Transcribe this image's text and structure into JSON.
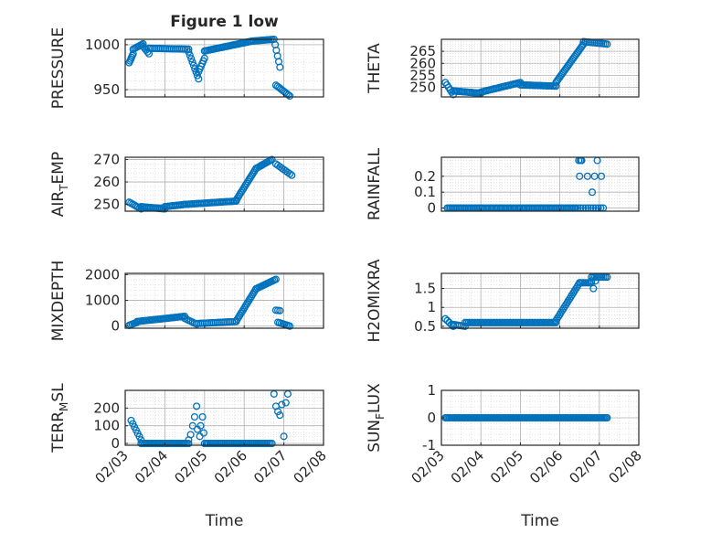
{
  "figure": {
    "title": "Figure 1 low"
  },
  "colors": {
    "marker": "#0072BD",
    "axis": "#262626",
    "grid": "#b0b0b0",
    "background": "#ffffff"
  },
  "time_ticks": [
    "02/03",
    "02/04",
    "02/05",
    "02/06",
    "02/07",
    "02/08"
  ],
  "chart_data": [
    {
      "type": "scatter",
      "id": "pressure",
      "title": "Figure 1 low",
      "ylabel_html": [
        "PRESSURE"
      ],
      "xlabel": "",
      "x_range": [
        3,
        8
      ],
      "ylim": [
        942,
        1006
      ],
      "yticks": [
        950,
        1000
      ],
      "ytick_labels": [
        "950",
        "1000"
      ],
      "segments": [
        {
          "x0": 3.1,
          "x1": 3.2,
          "y0": 980,
          "y1": 990,
          "n": 6
        },
        {
          "x0": 3.2,
          "x1": 3.45,
          "y0": 995,
          "y1": 1001,
          "n": 8
        },
        {
          "x0": 3.45,
          "x1": 3.6,
          "y0": 998,
          "y1": 990,
          "n": 5
        },
        {
          "x0": 3.6,
          "x1": 4.6,
          "y0": 996,
          "y1": 995,
          "n": 22
        },
        {
          "x0": 4.6,
          "x1": 4.85,
          "y0": 992,
          "y1": 962,
          "n": 9
        },
        {
          "x0": 4.85,
          "x1": 5.0,
          "y0": 970,
          "y1": 985,
          "n": 6
        },
        {
          "x0": 5.0,
          "x1": 6.2,
          "y0": 993,
          "y1": 1004,
          "n": 35
        },
        {
          "x0": 6.2,
          "x1": 6.75,
          "y0": 1004,
          "y1": 1006,
          "n": 14
        },
        {
          "x0": 6.78,
          "x1": 6.9,
          "y0": 1000,
          "y1": 975,
          "n": 5
        },
        {
          "x0": 6.8,
          "x1": 7.15,
          "y0": 955,
          "y1": 943,
          "n": 10
        }
      ]
    },
    {
      "type": "scatter",
      "id": "theta",
      "ylabel_html": [
        "THETA"
      ],
      "xlabel": "",
      "x_range": [
        3,
        8
      ],
      "ylim": [
        246,
        270
      ],
      "yticks": [
        250,
        255,
        260,
        265
      ],
      "ytick_labels": [
        "250",
        "255",
        "260",
        "265"
      ],
      "segments": [
        {
          "x0": 3.1,
          "x1": 3.3,
          "y0": 252,
          "y1": 247,
          "n": 6
        },
        {
          "x0": 3.3,
          "x1": 4.0,
          "y0": 248.5,
          "y1": 247.5,
          "n": 20
        },
        {
          "x0": 4.0,
          "x1": 5.0,
          "y0": 248,
          "y1": 252,
          "n": 28
        },
        {
          "x0": 5.0,
          "x1": 5.9,
          "y0": 251,
          "y1": 250.5,
          "n": 22
        },
        {
          "x0": 5.9,
          "x1": 6.6,
          "y0": 252,
          "y1": 268,
          "n": 26
        },
        {
          "x0": 6.6,
          "x1": 7.2,
          "y0": 269,
          "y1": 268,
          "n": 14
        }
      ]
    },
    {
      "type": "scatter",
      "id": "air_temp",
      "ylabel_html": [
        "AIR",
        "T",
        "EMP"
      ],
      "xlabel": "",
      "x_range": [
        3,
        8
      ],
      "ylim": [
        247,
        271
      ],
      "yticks": [
        250,
        260,
        270
      ],
      "ytick_labels": [
        "250",
        "260",
        "270"
      ],
      "segments": [
        {
          "x0": 3.1,
          "x1": 3.4,
          "y0": 251,
          "y1": 248,
          "n": 8
        },
        {
          "x0": 3.4,
          "x1": 4.0,
          "y0": 249,
          "y1": 248,
          "n": 16
        },
        {
          "x0": 4.0,
          "x1": 4.5,
          "y0": 249,
          "y1": 250,
          "n": 14
        },
        {
          "x0": 4.5,
          "x1": 5.8,
          "y0": 250,
          "y1": 251.5,
          "n": 34
        },
        {
          "x0": 5.8,
          "x1": 6.3,
          "y0": 252,
          "y1": 266,
          "n": 18
        },
        {
          "x0": 6.3,
          "x1": 6.7,
          "y0": 266,
          "y1": 270,
          "n": 12
        },
        {
          "x0": 6.8,
          "x1": 7.2,
          "y0": 268,
          "y1": 263,
          "n": 9
        }
      ]
    },
    {
      "type": "scatter",
      "id": "rainfall",
      "ylabel_html": [
        "RAINFALL"
      ],
      "xlabel": "",
      "x_range": [
        3,
        8
      ],
      "ylim": [
        -0.02,
        0.32
      ],
      "yticks": [
        0,
        0.1,
        0.2
      ],
      "ytick_labels": [
        "0",
        "0.1",
        "0.2"
      ],
      "segments": [
        {
          "x0": 3.15,
          "x1": 6.4,
          "y0": 0,
          "y1": 0,
          "n": 85
        },
        {
          "x0": 6.4,
          "x1": 7.1,
          "y0": 0,
          "y1": 0,
          "n": 12
        }
      ],
      "points": [
        [
          6.48,
          0.3
        ],
        [
          6.52,
          0.3
        ],
        [
          6.55,
          0.3
        ],
        [
          6.5,
          0.2
        ],
        [
          6.55,
          0.3
        ],
        [
          6.7,
          0.2
        ],
        [
          6.82,
          0.1
        ],
        [
          6.88,
          0.2
        ],
        [
          6.95,
          0.3
        ],
        [
          7.05,
          0.2
        ]
      ]
    },
    {
      "type": "scatter",
      "id": "mixdepth",
      "ylabel_html": [
        "MIXDEPTH"
      ],
      "xlabel": "",
      "x_range": [
        3,
        8
      ],
      "ylim": [
        -80,
        2050
      ],
      "yticks": [
        0,
        1000,
        2000
      ],
      "ytick_labels": [
        "0",
        "1000",
        "2000"
      ],
      "segments": [
        {
          "x0": 3.1,
          "x1": 3.3,
          "y0": 30,
          "y1": 150,
          "n": 6
        },
        {
          "x0": 3.3,
          "x1": 4.5,
          "y0": 180,
          "y1": 380,
          "n": 30
        },
        {
          "x0": 4.5,
          "x1": 4.8,
          "y0": 300,
          "y1": 80,
          "n": 7
        },
        {
          "x0": 4.8,
          "x1": 5.8,
          "y0": 100,
          "y1": 180,
          "n": 22
        },
        {
          "x0": 5.8,
          "x1": 6.3,
          "y0": 200,
          "y1": 1450,
          "n": 18
        },
        {
          "x0": 6.3,
          "x1": 6.8,
          "y0": 1450,
          "y1": 1820,
          "n": 14
        },
        {
          "x0": 6.8,
          "x1": 6.9,
          "y0": 620,
          "y1": 600,
          "n": 3
        },
        {
          "x0": 6.85,
          "x1": 7.15,
          "y0": 150,
          "y1": 0,
          "n": 8
        }
      ]
    },
    {
      "type": "scatter",
      "id": "h2omixra",
      "ylabel_html": [
        "H2OMIXRA"
      ],
      "xlabel": "",
      "x_range": [
        3,
        8
      ],
      "ylim": [
        0.45,
        1.9
      ],
      "yticks": [
        0.5,
        1,
        1.5
      ],
      "ytick_labels": [
        "0.5",
        "1",
        "1.5"
      ],
      "segments": [
        {
          "x0": 3.1,
          "x1": 3.3,
          "y0": 0.7,
          "y1": 0.5,
          "n": 5
        },
        {
          "x0": 3.3,
          "x1": 3.6,
          "y0": 0.55,
          "y1": 0.5,
          "n": 7
        },
        {
          "x0": 3.6,
          "x1": 5.9,
          "y0": 0.6,
          "y1": 0.6,
          "n": 55
        },
        {
          "x0": 5.9,
          "x1": 6.5,
          "y0": 0.65,
          "y1": 1.65,
          "n": 20
        },
        {
          "x0": 6.5,
          "x1": 6.8,
          "y0": 1.65,
          "y1": 1.65,
          "n": 8
        },
        {
          "x0": 6.8,
          "x1": 7.2,
          "y0": 1.8,
          "y1": 1.8,
          "n": 10
        }
      ],
      "points": [
        [
          6.85,
          1.5
        ],
        [
          6.9,
          1.7
        ],
        [
          6.8,
          1.7
        ]
      ]
    },
    {
      "type": "scatter",
      "id": "terr_msl",
      "ylabel_html": [
        "TERR",
        "M",
        "SL"
      ],
      "xlabel": "Time",
      "x_range": [
        3,
        8
      ],
      "ylim": [
        -10,
        300
      ],
      "yticks": [
        0,
        100,
        200
      ],
      "ytick_labels": [
        "0",
        "100",
        "200"
      ],
      "segments": [
        {
          "x0": 3.15,
          "x1": 3.4,
          "y0": 130,
          "y1": 20,
          "n": 7
        },
        {
          "x0": 3.4,
          "x1": 4.6,
          "y0": 0,
          "y1": 0,
          "n": 30
        },
        {
          "x0": 5.0,
          "x1": 6.7,
          "y0": 0,
          "y1": 0,
          "n": 40
        }
      ],
      "points": [
        [
          4.65,
          50
        ],
        [
          4.7,
          100
        ],
        [
          4.75,
          150
        ],
        [
          4.8,
          210
        ],
        [
          4.82,
          80
        ],
        [
          4.88,
          40
        ],
        [
          4.9,
          100
        ],
        [
          4.95,
          150
        ],
        [
          4.98,
          60
        ],
        [
          4.6,
          20
        ],
        [
          6.75,
          280
        ],
        [
          6.8,
          210
        ],
        [
          6.85,
          180
        ],
        [
          6.9,
          160
        ],
        [
          6.95,
          220
        ],
        [
          7.05,
          230
        ],
        [
          7.1,
          280
        ],
        [
          7.0,
          40
        ]
      ]
    },
    {
      "type": "scatter",
      "id": "sun_flux",
      "ylabel_html": [
        "SUN",
        "F",
        "LUX"
      ],
      "xlabel": "Time",
      "x_range": [
        3,
        8
      ],
      "ylim": [
        -1,
        1
      ],
      "yticks": [
        -1,
        0,
        1
      ],
      "ytick_labels": [
        "-1",
        "0",
        "1"
      ],
      "segments": [
        {
          "x0": 3.1,
          "x1": 7.2,
          "y0": 0,
          "y1": 0,
          "n": 120
        }
      ]
    }
  ]
}
